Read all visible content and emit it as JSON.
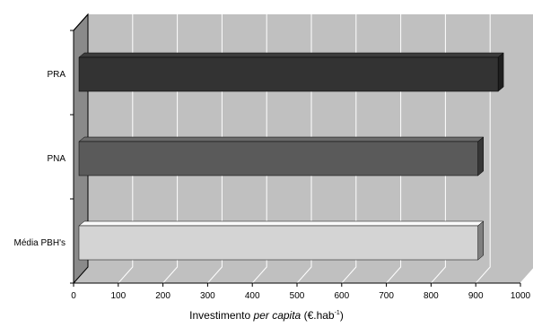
{
  "chart_data": {
    "type": "bar",
    "orientation": "horizontal",
    "style": "3d",
    "categories": [
      "PRA",
      "PNA",
      "Média PBH's"
    ],
    "values": [
      950,
      905,
      905
    ],
    "colors": [
      "#333333",
      "#5a5a5a",
      "#d4d4d4"
    ],
    "xlim": [
      0,
      1000
    ],
    "xticks": [
      0,
      100,
      200,
      300,
      400,
      500,
      600,
      700,
      800,
      900,
      1000
    ],
    "xlabel": {
      "prefix": "Investimento ",
      "emphasis": "per capita",
      "unit_before": " (€.hab",
      "unit_exponent": "-1",
      "unit_after": ")"
    },
    "grid": true,
    "wall_color": "#c0c0c0",
    "side_wall_color": "#8a8a8a",
    "legend": "none"
  }
}
